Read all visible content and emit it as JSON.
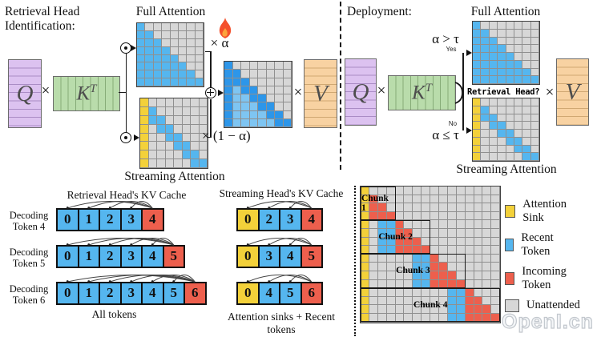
{
  "colors": {
    "blue": "#55b6ef",
    "yellow": "#f3d13a",
    "red": "#ed5f4d",
    "gray": "#d7d7d7",
    "dark_blue": "#2d96e9",
    "light_blue": "#7ec5f2",
    "q_purple": "#dcc2f0",
    "k_green": "#b9dcab",
    "v_orange": "#f8d2a2"
  },
  "identification": {
    "title_line1": "Retrieval Head",
    "title_line2": "Identification:",
    "full_attention_title": "Full Attention",
    "streaming_attention_title": "Streaming Attention",
    "q": "Q",
    "k": "K",
    "k_sup": "T",
    "v": "V",
    "times": "×",
    "alpha_weight": "× α",
    "one_minus_alpha_weight": "× (1 − α)"
  },
  "deployment": {
    "title": "Deployment:",
    "q": "Q",
    "k": "K",
    "k_sup": "T",
    "v": "V",
    "times": "×",
    "alpha_gt_tau": "α > τ",
    "yes": "Yes",
    "alpha_le_tau": "α ≤ τ",
    "no": "No",
    "retrieval_head_question": "Retrieval Head?",
    "full_attention_title": "Full Attention",
    "streaming_attention_title": "Streaming Attention"
  },
  "matrices": {
    "full": [
      "b.......",
      "bb......",
      "bbb.....",
      "bbbb....",
      "bbbbb...",
      "bbbbbb..",
      "bbbbbbb.",
      "bbbbbbbb"
    ],
    "streaming": [
      "y.......",
      "yb......",
      "ybb.....",
      "y.bb....",
      "y..bb...",
      "y...bb..",
      "y....bb.",
      "y.....bb"
    ],
    "mixed": [
      "d.......",
      "dd......",
      "ddd.....",
      "dldd....",
      "dlldd...",
      "dllldd..",
      "dlllldd.",
      "dllllldd"
    ]
  },
  "kv_cache": {
    "retrieval_title": "Retrieval Head's KV Cache",
    "streaming_title": "Streaming Head's KV Cache",
    "row_labels": [
      {
        "line1": "Decoding",
        "line2": "Token 4"
      },
      {
        "line1": "Decoding",
        "line2": "Token 5"
      },
      {
        "line1": "Decoding",
        "line2": "Token 6"
      }
    ],
    "retrieval_rows": [
      [
        {
          "n": "0",
          "k": "b"
        },
        {
          "n": "1",
          "k": "b"
        },
        {
          "n": "2",
          "k": "b"
        },
        {
          "n": "3",
          "k": "b"
        },
        {
          "n": "4",
          "k": "r"
        }
      ],
      [
        {
          "n": "0",
          "k": "b"
        },
        {
          "n": "1",
          "k": "b"
        },
        {
          "n": "2",
          "k": "b"
        },
        {
          "n": "3",
          "k": "b"
        },
        {
          "n": "4",
          "k": "b"
        },
        {
          "n": "5",
          "k": "r"
        }
      ],
      [
        {
          "n": "0",
          "k": "b"
        },
        {
          "n": "1",
          "k": "b"
        },
        {
          "n": "2",
          "k": "b"
        },
        {
          "n": "3",
          "k": "b"
        },
        {
          "n": "4",
          "k": "b"
        },
        {
          "n": "5",
          "k": "b"
        },
        {
          "n": "6",
          "k": "r"
        }
      ]
    ],
    "streaming_rows": [
      [
        {
          "n": "0",
          "k": "y"
        },
        {
          "n": "2",
          "k": "b"
        },
        {
          "n": "3",
          "k": "b"
        },
        {
          "n": "4",
          "k": "r"
        }
      ],
      [
        {
          "n": "0",
          "k": "y"
        },
        {
          "n": "3",
          "k": "b"
        },
        {
          "n": "4",
          "k": "b"
        },
        {
          "n": "5",
          "k": "r"
        }
      ],
      [
        {
          "n": "0",
          "k": "y"
        },
        {
          "n": "4",
          "k": "b"
        },
        {
          "n": "5",
          "k": "b"
        },
        {
          "n": "6",
          "k": "r"
        }
      ]
    ],
    "retrieval_caption": "All tokens",
    "streaming_caption": "Attention sinks + Recent tokens"
  },
  "chunked_matrix": {
    "rows": [
      "y...............",
      "yr..............",
      "yrr.............",
      "yrrr............",
      "y.bbr...........",
      "y.bbrr..........",
      "y.bbrrr.........",
      "y.bbrrrr........",
      "y.....bbr.......",
      "y.....bbrr......",
      "y.....bbrrr.....",
      "y.....bbrrrr....",
      "y.........bbr...",
      "y.........bbrr..",
      "y.........bbrrr.",
      "y.........bbrrrr"
    ],
    "chunks": [
      {
        "label": "Chunk 1",
        "row_start": 0,
        "col_span": 4
      },
      {
        "label": "Chunk 2",
        "row_start": 4,
        "col_span": 8
      },
      {
        "label": "Chunk 3",
        "row_start": 8,
        "col_span": 12
      },
      {
        "label": "Chunk 4",
        "row_start": 12,
        "col_span": 16
      }
    ],
    "legend": [
      {
        "label": "Attention Sink",
        "k": "y"
      },
      {
        "label": "Recent Token",
        "k": "b"
      },
      {
        "label": "Incoming Token",
        "k": "r"
      },
      {
        "label": "Unattended",
        "k": "g"
      }
    ]
  },
  "watermark": "OpenI.cn"
}
